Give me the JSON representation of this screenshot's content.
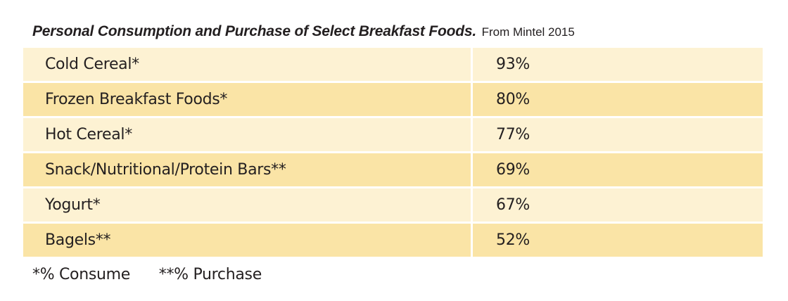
{
  "header": {
    "title": "Personal Consumption and Purchase of Select Breakfast Foods.",
    "source": "From Mintel 2015"
  },
  "chart_data": {
    "type": "table",
    "title": "Personal Consumption and Purchase of Select Breakfast Foods.",
    "subtitle": "From Mintel 2015",
    "categories": [
      "Cold Cereal*",
      "Frozen Breakfast Foods*",
      "Hot Cereal*",
      "Snack/Nutritional/Protein Bars**",
      "Yogurt*",
      "Bagels**"
    ],
    "values": [
      93,
      80,
      77,
      69,
      67,
      52
    ],
    "rows": [
      {
        "label": "Cold Cereal*",
        "value": "93%"
      },
      {
        "label": "Frozen Breakfast Foods*",
        "value": "80%"
      },
      {
        "label": "Hot Cereal*",
        "value": "77%"
      },
      {
        "label": "Snack/Nutritional/Protein Bars**",
        "value": "69%"
      },
      {
        "label": "Yogurt*",
        "value": "67%"
      },
      {
        "label": "Bagels**",
        "value": "52%"
      }
    ]
  },
  "footnotes": {
    "consume": "*% Consume",
    "purchase": "**% Purchase"
  },
  "colors": {
    "row_light": "#fdf2d3",
    "row_dark": "#fae4a6"
  }
}
